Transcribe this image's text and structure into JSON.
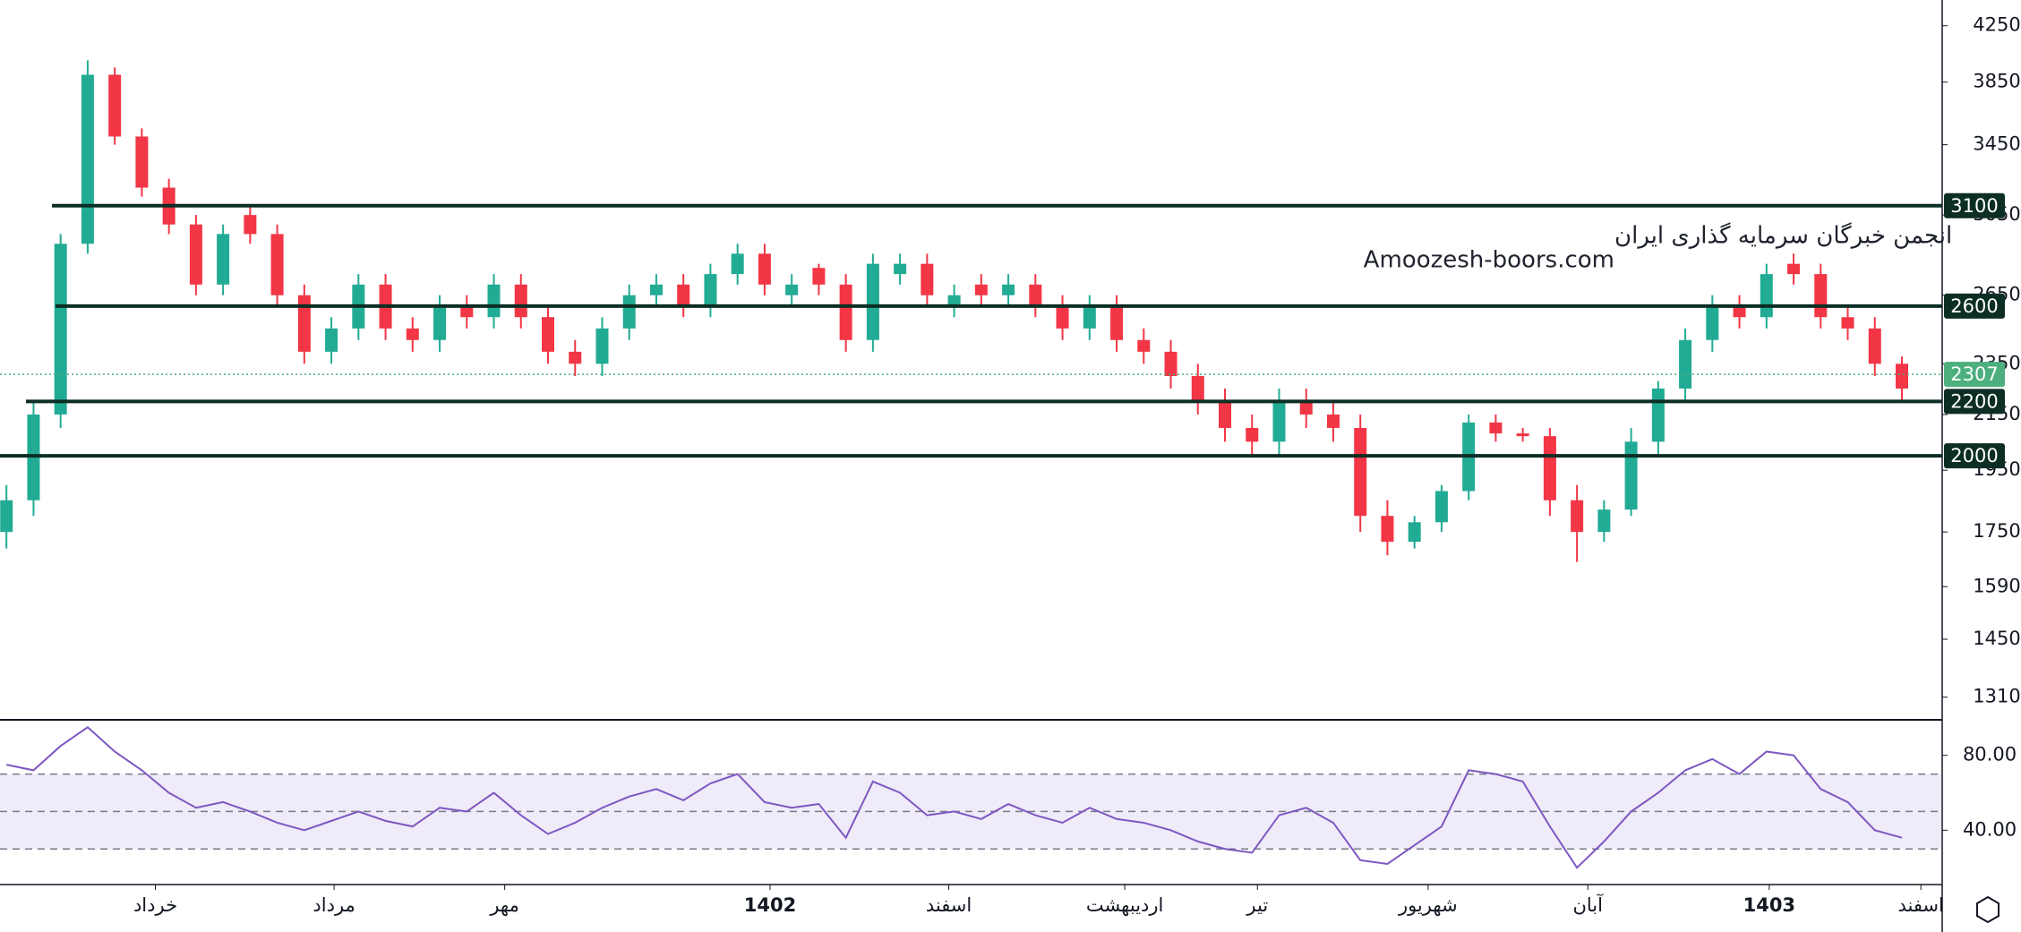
{
  "chart_data": {
    "type": "candlestick",
    "watermark": [
      "انجمن خبرگان سرمایه گذاری ایران",
      "Amoozesh-boors.com"
    ],
    "candles": {
      "open": [
        1750,
        1850,
        2150,
        2900,
        3900,
        3500,
        3200,
        3000,
        2700,
        3050,
        2950,
        2650,
        2400,
        2500,
        2700,
        2500,
        2450,
        2600,
        2550,
        2700,
        2550,
        2400,
        2350,
        2500,
        2650,
        2700,
        2600,
        2750,
        2850,
        2650,
        2780,
        2700,
        2450,
        2750,
        2800,
        2600,
        2700,
        2650,
        2700,
        2600,
        2500,
        2600,
        2450,
        2400,
        2300,
        2200,
        2100,
        2050,
        2200,
        2150,
        2100,
        1800,
        1720,
        1780,
        1880,
        2120,
        2080,
        2070,
        1850,
        1750,
        1820,
        2050,
        2250,
        2450,
        2600,
        2550,
        2800,
        2750,
        2550,
        2500,
        2350
      ],
      "high": [
        1900,
        2200,
        2950,
        4000,
        3950,
        3550,
        3250,
        3050,
        3000,
        3100,
        3000,
        2700,
        2550,
        2750,
        2750,
        2550,
        2650,
        2650,
        2750,
        2750,
        2600,
        2450,
        2550,
        2700,
        2750,
        2750,
        2800,
        2900,
        2900,
        2750,
        2800,
        2750,
        2850,
        2850,
        2850,
        2700,
        2750,
        2750,
        2750,
        2650,
        2650,
        2650,
        2500,
        2450,
        2350,
        2250,
        2150,
        2250,
        2250,
        2200,
        2150,
        1850,
        1800,
        1900,
        2150,
        2150,
        2100,
        2100,
        1900,
        1850,
        2100,
        2280,
        2500,
        2650,
        2650,
        2800,
        2850,
        2800,
        2600,
        2550,
        2380
      ],
      "low": [
        1700,
        1800,
        2100,
        2850,
        3450,
        3150,
        2950,
        2650,
        2650,
        2900,
        2600,
        2350,
        2350,
        2450,
        2450,
        2400,
        2400,
        2500,
        2500,
        2500,
        2350,
        2300,
        2300,
        2450,
        2600,
        2550,
        2550,
        2700,
        2650,
        2600,
        2650,
        2400,
        2400,
        2700,
        2600,
        2550,
        2600,
        2600,
        2550,
        2450,
        2450,
        2400,
        2350,
        2250,
        2150,
        2050,
        2000,
        2000,
        2100,
        2050,
        1750,
        1680,
        1700,
        1750,
        1850,
        2050,
        2050,
        1800,
        1660,
        1720,
        1800,
        2000,
        2200,
        2400,
        2500,
        2500,
        2700,
        2500,
        2450,
        2300,
        2200
      ],
      "close": [
        1850,
        2150,
        2900,
        3900,
        3500,
        3200,
        3000,
        2700,
        2950,
        2950,
        2650,
        2400,
        2500,
        2700,
        2500,
        2450,
        2600,
        2550,
        2700,
        2550,
        2400,
        2350,
        2500,
        2650,
        2700,
        2600,
        2750,
        2850,
        2700,
        2700,
        2700,
        2450,
        2800,
        2800,
        2650,
        2650,
        2650,
        2700,
        2600,
        2500,
        2600,
        2450,
        2400,
        2300,
        2200,
        2100,
        2050,
        2200,
        2150,
        2100,
        1800,
        1720,
        1780,
        1880,
        2120,
        2080,
        2070,
        1850,
        1750,
        1820,
        2050,
        2250,
        2450,
        2600,
        2550,
        2750,
        2750,
        2550,
        2500,
        2350,
        2250
      ]
    },
    "up_color": "#22ab94",
    "down_color": "#f23645",
    "log_scale": true,
    "ylim": [
      1261,
      4446
    ],
    "yticks": [
      4250,
      3850,
      3450,
      3050,
      2650,
      2350,
      2150,
      1950,
      1750,
      1590,
      1450,
      1310
    ],
    "levels": [
      3100,
      2600,
      2200,
      2000
    ],
    "level_color": "#0c2e24",
    "last_price": 2307,
    "last_price_color": "#4caf7d",
    "xticks": [
      {
        "value": 5.5,
        "label": "خرداد"
      },
      {
        "value": 12.1,
        "label": "مرداد"
      },
      {
        "value": 18.4,
        "label": "مهر"
      },
      {
        "value": 28.2,
        "label": "1402"
      },
      {
        "value": 34.8,
        "label": "اسفند"
      },
      {
        "value": 41.3,
        "label": "اردیبهشت"
      },
      {
        "value": 46.2,
        "label": "تیر"
      },
      {
        "value": 52.5,
        "label": "شهریور"
      },
      {
        "value": 58.4,
        "label": "آبان"
      },
      {
        "value": 65.1,
        "label": "1403"
      },
      {
        "value": 70.7,
        "label": "اسفند"
      }
    ],
    "rsi": {
      "values": [
        75,
        72,
        85,
        95,
        82,
        72,
        60,
        52,
        55,
        50,
        44,
        40,
        45,
        50,
        45,
        42,
        52,
        50,
        60,
        48,
        38,
        44,
        52,
        58,
        62,
        56,
        65,
        70,
        55,
        52,
        54,
        36,
        66,
        60,
        48,
        50,
        46,
        54,
        48,
        44,
        52,
        46,
        44,
        40,
        34,
        30,
        28,
        48,
        52,
        44,
        24,
        22,
        32,
        42,
        72,
        70,
        66,
        42,
        20,
        34,
        50,
        60,
        72,
        78,
        70,
        82,
        80,
        62,
        55,
        40,
        36
      ],
      "color": "#7e57c2",
      "ylim": [
        11,
        98
      ],
      "yticks": [
        {
          "value": 80,
          "label": "80.00"
        },
        {
          "value": 40,
          "label": "40.00"
        }
      ],
      "levels": [
        70,
        50,
        30
      ]
    }
  }
}
